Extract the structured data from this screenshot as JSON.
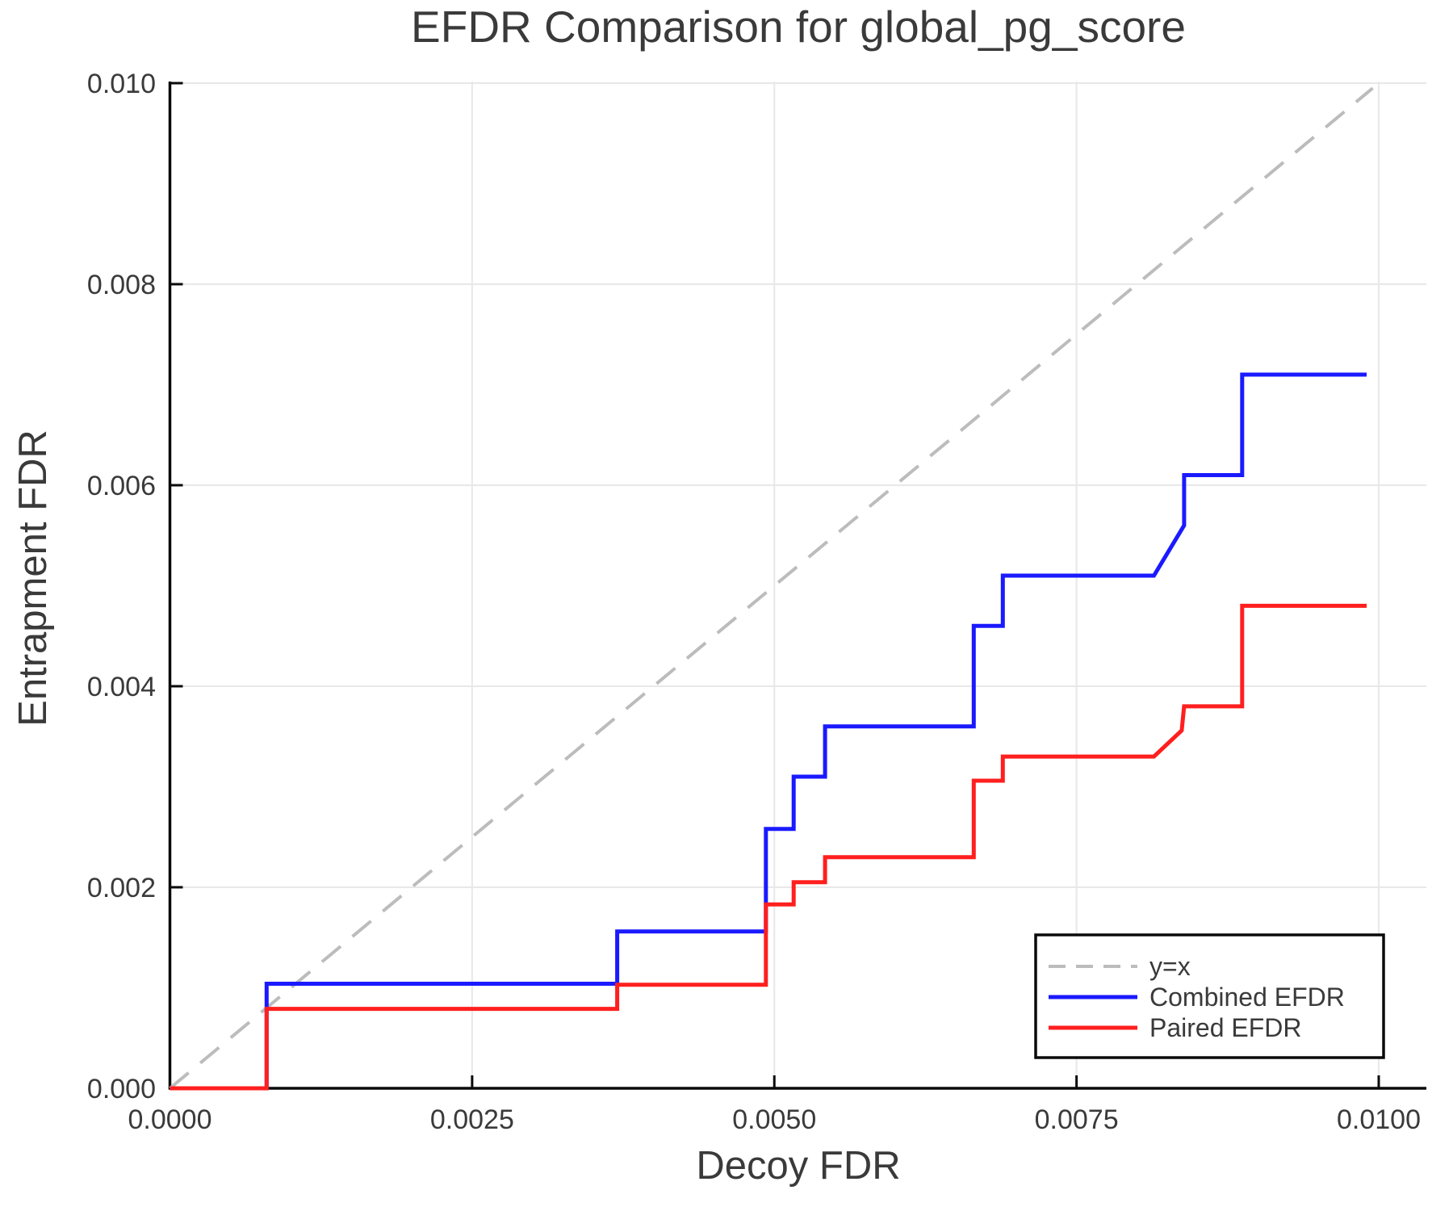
{
  "chart_data": {
    "type": "line",
    "title": "EFDR Comparison for global_pg_score",
    "xlabel": "Decoy FDR",
    "ylabel": "Entrapment FDR",
    "xlim": [
      0,
      0.0104
    ],
    "ylim": [
      0,
      0.0102
    ],
    "grid": true,
    "x_ticks": {
      "values": [
        0.0,
        0.0025,
        0.005,
        0.0075,
        0.01
      ],
      "labels": [
        "0.0000",
        "0.0025",
        "0.0050",
        "0.0075",
        "0.0100"
      ]
    },
    "y_ticks": {
      "values": [
        0.0,
        0.002,
        0.004,
        0.006,
        0.008,
        0.01
      ],
      "labels": [
        "0.000",
        "0.002",
        "0.004",
        "0.006",
        "0.008",
        "0.010"
      ]
    },
    "x_gridlines": [
      0.0025,
      0.005,
      0.0075,
      0.01
    ],
    "y_gridlines": [
      0.002,
      0.004,
      0.006,
      0.008,
      0.01
    ],
    "legend": {
      "position": "lower right",
      "entries": [
        {
          "label": "y=x",
          "color": "#bcbcbc",
          "dashed": true
        },
        {
          "label": "Combined EFDR",
          "color": "#1a1aff",
          "dashed": false
        },
        {
          "label": "Paired EFDR",
          "color": "#ff1f1f",
          "dashed": false
        }
      ]
    },
    "series": [
      {
        "name": "y=x",
        "color": "#bcbcbc",
        "dashed": true,
        "points": [
          [
            0,
            0
          ],
          [
            0.00995,
            0.00995
          ]
        ]
      },
      {
        "name": "Combined EFDR",
        "color": "#1a1aff",
        "dashed": false,
        "points": [
          [
            0,
            0
          ],
          [
            0.0008,
            0
          ],
          [
            0.0008,
            0.00104
          ],
          [
            0.0037,
            0.00104
          ],
          [
            0.0037,
            0.00156
          ],
          [
            0.00493,
            0.00156
          ],
          [
            0.00493,
            0.00258
          ],
          [
            0.00516,
            0.00258
          ],
          [
            0.00516,
            0.0031
          ],
          [
            0.00542,
            0.0031
          ],
          [
            0.00542,
            0.0036
          ],
          [
            0.00665,
            0.0036
          ],
          [
            0.00665,
            0.0046
          ],
          [
            0.00689,
            0.0046
          ],
          [
            0.00689,
            0.0051
          ],
          [
            0.00814,
            0.0051
          ],
          [
            0.00839,
            0.0056
          ],
          [
            0.00839,
            0.0061
          ],
          [
            0.00887,
            0.0061
          ],
          [
            0.00887,
            0.0071
          ],
          [
            0.0099,
            0.0071
          ]
        ]
      },
      {
        "name": "Paired EFDR",
        "color": "#ff1f1f",
        "dashed": false,
        "points": [
          [
            0,
            0
          ],
          [
            0.0008,
            0
          ],
          [
            0.0008,
            0.00079
          ],
          [
            0.0037,
            0.00079
          ],
          [
            0.0037,
            0.00103
          ],
          [
            0.00493,
            0.00103
          ],
          [
            0.00493,
            0.00183
          ],
          [
            0.00516,
            0.00183
          ],
          [
            0.00516,
            0.00205
          ],
          [
            0.00542,
            0.00205
          ],
          [
            0.00542,
            0.0023
          ],
          [
            0.00665,
            0.0023
          ],
          [
            0.00665,
            0.00306
          ],
          [
            0.00689,
            0.00306
          ],
          [
            0.00689,
            0.0033
          ],
          [
            0.00814,
            0.0033
          ],
          [
            0.00837,
            0.00356
          ],
          [
            0.00839,
            0.0038
          ],
          [
            0.00887,
            0.0038
          ],
          [
            0.00887,
            0.0048
          ],
          [
            0.0099,
            0.0048
          ]
        ]
      }
    ]
  },
  "colors": {
    "background": "#ffffff",
    "grid": "#e8e8e8",
    "spine": "#0a0a0a",
    "tick": "#0a0a0a",
    "text": "#3a3a3a",
    "legend_border": "#0a0a0a",
    "legend_background": "#ffffff"
  }
}
